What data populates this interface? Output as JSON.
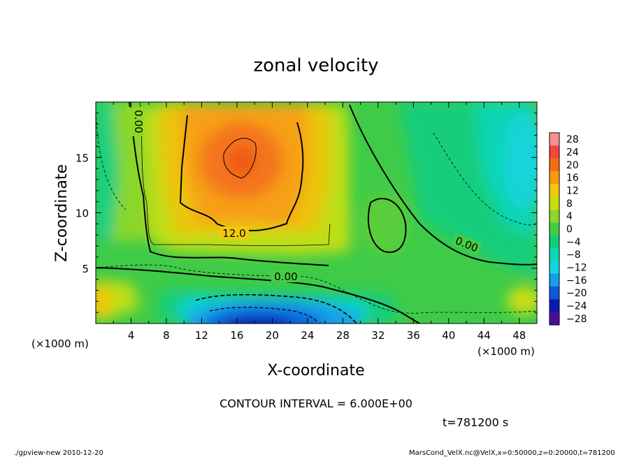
{
  "chart_data": {
    "type": "heatmap",
    "title": "zonal velocity",
    "xlabel": "X-coordinate",
    "ylabel": "Z-coordinate",
    "x_unit_label": "(×1000 m)",
    "z_unit_label": "(×1000 m)",
    "xlim": [
      0,
      50
    ],
    "ylim": [
      0,
      20
    ],
    "x_ticks": [
      4,
      8,
      12,
      16,
      20,
      24,
      28,
      32,
      36,
      40,
      44,
      48
    ],
    "y_ticks": [
      5,
      10,
      15
    ],
    "colorbar": {
      "levels": [
        28,
        24,
        20,
        16,
        12,
        8,
        4,
        0,
        -4,
        -8,
        -12,
        -16,
        -20,
        -24,
        -28
      ],
      "level_labels": [
        "28",
        "24",
        "20",
        "16",
        "12",
        "8",
        "4",
        "0",
        "−4",
        "−8",
        "−12",
        "−16",
        "−20",
        "−24",
        "−28"
      ],
      "colors": [
        "#f98f8f",
        "#f3473b",
        "#f46d12",
        "#f79b10",
        "#f2c80e",
        "#c8de10",
        "#8ed825",
        "#46cc43",
        "#14cd7c",
        "#0ed7b5",
        "#12d4dd",
        "#139ee8",
        "#0f58d9",
        "#0c1ab0",
        "#4a0f9a"
      ]
    },
    "contour_labels": [
      "0.00",
      "12.0",
      "0.00",
      "0.00"
    ],
    "features": [
      {
        "name": "jet maximum",
        "x": 16,
        "z": 14.5,
        "value": 20
      },
      {
        "name": "negative core",
        "x": 17,
        "z": 0.5,
        "value": -24
      },
      {
        "name": "upper-right minimum",
        "x": 48,
        "z": 14,
        "value": -8
      },
      {
        "name": "lower-left maximum",
        "x": 0.5,
        "z": 2,
        "value": 12
      }
    ],
    "contour_interval_text": "CONTOUR INTERVAL = 6.000E+00",
    "time_text": "t=781200 s"
  },
  "footer": {
    "left": "./gpview-new   2010-12-20",
    "right": "MarsCond_VelX.nc@VelX,x=0:50000,z=0:20000,t=781200"
  }
}
